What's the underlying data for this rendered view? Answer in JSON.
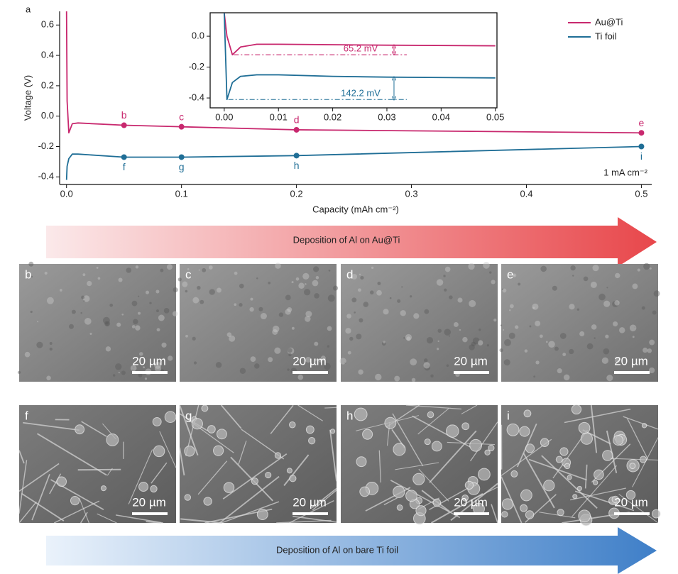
{
  "figure_label": "a",
  "chart_data": [
    {
      "type": "line",
      "x_label": "Capacity (mAh cm⁻²)",
      "y_label": "Voltage (V)",
      "annotation": "1 mA cm⁻²",
      "xlim": [
        -0.006,
        0.509
      ],
      "ylim": [
        -0.45,
        0.69
      ],
      "xticks": [
        {
          "value": 0,
          "label": "0.0"
        },
        0.1,
        0.2,
        0.3,
        0.4,
        0.5
      ],
      "yticks": [
        -0.4,
        -0.2,
        {
          "value": 0,
          "label": "0.0"
        },
        0.2,
        0.4,
        0.6
      ],
      "legend": "top-right",
      "x": [
        0,
        0.0005,
        0.002,
        0.005,
        0.01,
        0.05,
        0.1,
        0.2,
        0.5
      ],
      "series": [
        {
          "name": "Au@Ti",
          "color": "#c8286e",
          "label_position": "above",
          "values": [
            0.69,
            0.1,
            -0.11,
            -0.05,
            -0.045,
            -0.06,
            -0.07,
            -0.09,
            -0.11
          ],
          "marker_labels": [
            null,
            null,
            null,
            null,
            null,
            "b",
            "c",
            "d",
            "e"
          ]
        },
        {
          "name": "Ti foil",
          "color": "#1f6e96",
          "label_position": "below",
          "values": [
            -0.42,
            -0.33,
            -0.28,
            -0.25,
            -0.25,
            -0.27,
            -0.27,
            -0.26,
            -0.2
          ],
          "marker_labels": [
            null,
            null,
            null,
            null,
            null,
            "f",
            "g",
            "h",
            "i"
          ]
        }
      ]
    },
    {
      "type": "line",
      "inset": true,
      "xlim": [
        -0.0026,
        0.0503
      ],
      "ylim": [
        -0.464,
        0.152
      ],
      "xticks": [
        {
          "value": 0,
          "label": "0.00"
        },
        {
          "value": 0.01,
          "label": "0.01"
        },
        {
          "value": 0.02,
          "label": "0.02"
        },
        {
          "value": 0.03,
          "label": "0.03"
        },
        {
          "value": 0.04,
          "label": "0.04"
        },
        {
          "value": 0.05,
          "label": "0.05"
        }
      ],
      "yticks": [
        -0.4,
        -0.2,
        {
          "value": 0,
          "label": "0.0"
        }
      ],
      "x": [
        0,
        0.0005,
        0.0015,
        0.003,
        0.006,
        0.01,
        0.02,
        0.03,
        0.05
      ],
      "series": [
        {
          "name": "Au@Ti",
          "color": "#c8286e",
          "annotation": "65.2 mV",
          "values": [
            0.15,
            0.0,
            -0.12,
            -0.07,
            -0.052,
            -0.052,
            -0.055,
            -0.058,
            -0.062
          ]
        },
        {
          "name": "Ti foil",
          "color": "#1f6e96",
          "annotation": "142.2 mV",
          "values": [
            0.15,
            -0.41,
            -0.3,
            -0.26,
            -0.25,
            -0.25,
            -0.26,
            -0.265,
            -0.27
          ]
        }
      ]
    }
  ],
  "arrows": [
    {
      "text": "Deposition of Al on Au@Ti"
    },
    {
      "text": "Deposition of Al on bare Ti foil"
    }
  ],
  "micrographs": [
    {
      "label": "b",
      "scale_bar": "20 µm"
    },
    {
      "label": "c",
      "scale_bar": "20 µm"
    },
    {
      "label": "d",
      "scale_bar": "20 µm"
    },
    {
      "label": "e",
      "scale_bar": "20 µm"
    },
    {
      "label": "f",
      "scale_bar": "20 µm"
    },
    {
      "label": "g",
      "scale_bar": "20 µm"
    },
    {
      "label": "h",
      "scale_bar": "20 µm"
    },
    {
      "label": "i",
      "scale_bar": "20 µm"
    }
  ]
}
